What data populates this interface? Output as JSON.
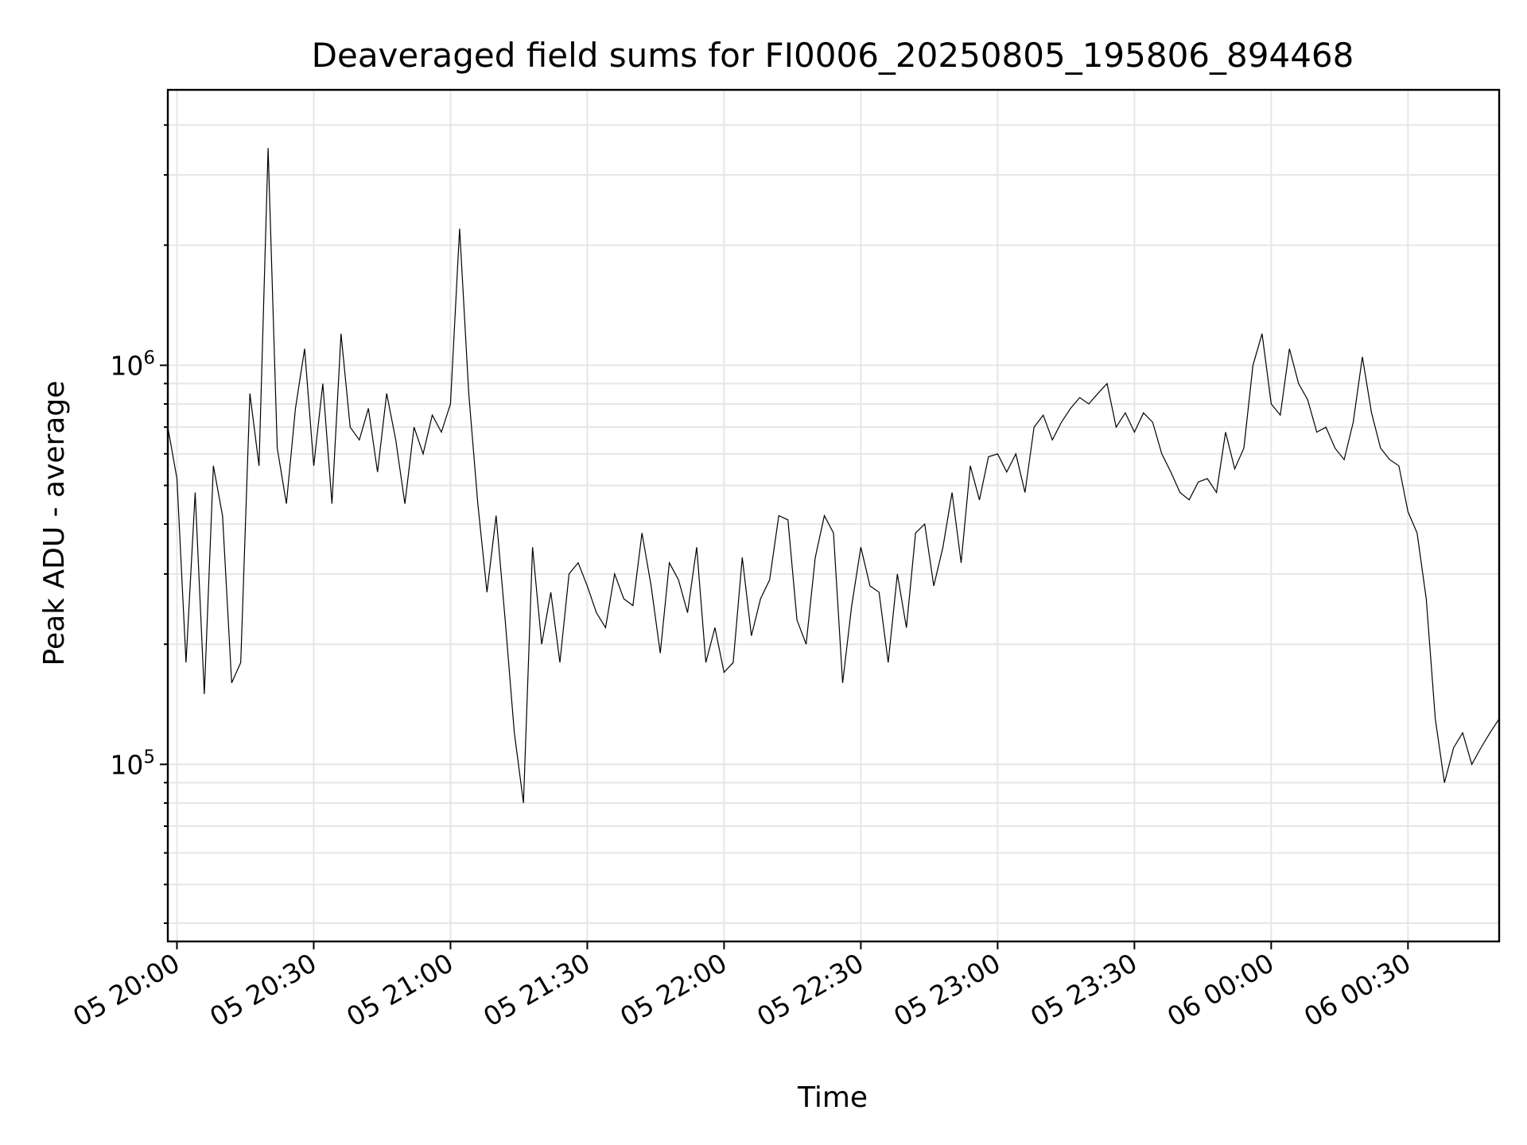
{
  "chart_data": {
    "type": "line",
    "title": "Deaveraged field sums for FI0006_20250805_195806_894468",
    "xlabel": "Time",
    "ylabel": "Peak ADU - average",
    "yscale": "log",
    "ylim": [
      36000,
      4900000
    ],
    "xlim": [
      "2025-08-05 19:58",
      "2025-08-06 00:50"
    ],
    "grid": true,
    "line_color": "#000000",
    "x_ticks": [
      {
        "t": "2025-08-05 20:00",
        "label": "05 20:00"
      },
      {
        "t": "2025-08-05 20:30",
        "label": "05 20:30"
      },
      {
        "t": "2025-08-05 21:00",
        "label": "05 21:00"
      },
      {
        "t": "2025-08-05 21:30",
        "label": "05 21:30"
      },
      {
        "t": "2025-08-05 22:00",
        "label": "05 22:00"
      },
      {
        "t": "2025-08-05 22:30",
        "label": "05 22:30"
      },
      {
        "t": "2025-08-05 23:00",
        "label": "05 23:00"
      },
      {
        "t": "2025-08-05 23:30",
        "label": "05 23:30"
      },
      {
        "t": "2025-08-06 00:00",
        "label": "06 00:00"
      },
      {
        "t": "2025-08-06 00:30",
        "label": "06 00:30"
      }
    ],
    "y_ticks": [
      {
        "value": 100000,
        "base": "10",
        "exp": "5"
      },
      {
        "value": 1000000,
        "base": "10",
        "exp": "6"
      }
    ],
    "series": [
      {
        "x": [
          "2025-08-05 19:58",
          "2025-08-05 20:00",
          "2025-08-05 20:02",
          "2025-08-05 20:04",
          "2025-08-05 20:06",
          "2025-08-05 20:08",
          "2025-08-05 20:10",
          "2025-08-05 20:12",
          "2025-08-05 20:14",
          "2025-08-05 20:16",
          "2025-08-05 20:18",
          "2025-08-05 20:20",
          "2025-08-05 20:22",
          "2025-08-05 20:24",
          "2025-08-05 20:26",
          "2025-08-05 20:28",
          "2025-08-05 20:30",
          "2025-08-05 20:32",
          "2025-08-05 20:34",
          "2025-08-05 20:36",
          "2025-08-05 20:38",
          "2025-08-05 20:40",
          "2025-08-05 20:42",
          "2025-08-05 20:44",
          "2025-08-05 20:46",
          "2025-08-05 20:48",
          "2025-08-05 20:50",
          "2025-08-05 20:52",
          "2025-08-05 20:54",
          "2025-08-05 20:56",
          "2025-08-05 20:58",
          "2025-08-05 21:00",
          "2025-08-05 21:02",
          "2025-08-05 21:04",
          "2025-08-05 21:06",
          "2025-08-05 21:08",
          "2025-08-05 21:10",
          "2025-08-05 21:12",
          "2025-08-05 21:14",
          "2025-08-05 21:16",
          "2025-08-05 21:18",
          "2025-08-05 21:20",
          "2025-08-05 21:22",
          "2025-08-05 21:24",
          "2025-08-05 21:26",
          "2025-08-05 21:28",
          "2025-08-05 21:30",
          "2025-08-05 21:32",
          "2025-08-05 21:34",
          "2025-08-05 21:36",
          "2025-08-05 21:38",
          "2025-08-05 21:40",
          "2025-08-05 21:42",
          "2025-08-05 21:44",
          "2025-08-05 21:46",
          "2025-08-05 21:48",
          "2025-08-05 21:50",
          "2025-08-05 21:52",
          "2025-08-05 21:54",
          "2025-08-05 21:56",
          "2025-08-05 21:58",
          "2025-08-05 22:00",
          "2025-08-05 22:02",
          "2025-08-05 22:04",
          "2025-08-05 22:06",
          "2025-08-05 22:08",
          "2025-08-05 22:10",
          "2025-08-05 22:12",
          "2025-08-05 22:14",
          "2025-08-05 22:16",
          "2025-08-05 22:18",
          "2025-08-05 22:20",
          "2025-08-05 22:22",
          "2025-08-05 22:24",
          "2025-08-05 22:26",
          "2025-08-05 22:28",
          "2025-08-05 22:30",
          "2025-08-05 22:32",
          "2025-08-05 22:34",
          "2025-08-05 22:36",
          "2025-08-05 22:38",
          "2025-08-05 22:40",
          "2025-08-05 22:42",
          "2025-08-05 22:44",
          "2025-08-05 22:46",
          "2025-08-05 22:48",
          "2025-08-05 22:50",
          "2025-08-05 22:52",
          "2025-08-05 22:54",
          "2025-08-05 22:56",
          "2025-08-05 22:58",
          "2025-08-05 23:00",
          "2025-08-05 23:02",
          "2025-08-05 23:04",
          "2025-08-05 23:06",
          "2025-08-05 23:08",
          "2025-08-05 23:10",
          "2025-08-05 23:12",
          "2025-08-05 23:14",
          "2025-08-05 23:16",
          "2025-08-05 23:18",
          "2025-08-05 23:20",
          "2025-08-05 23:22",
          "2025-08-05 23:24",
          "2025-08-05 23:26",
          "2025-08-05 23:28",
          "2025-08-05 23:30",
          "2025-08-05 23:32",
          "2025-08-05 23:34",
          "2025-08-05 23:36",
          "2025-08-05 23:38",
          "2025-08-05 23:40",
          "2025-08-05 23:42",
          "2025-08-05 23:44",
          "2025-08-05 23:46",
          "2025-08-05 23:48",
          "2025-08-05 23:50",
          "2025-08-05 23:52",
          "2025-08-05 23:54",
          "2025-08-05 23:56",
          "2025-08-05 23:58",
          "2025-08-06 00:00",
          "2025-08-06 00:02",
          "2025-08-06 00:04",
          "2025-08-06 00:06",
          "2025-08-06 00:08",
          "2025-08-06 00:10",
          "2025-08-06 00:12",
          "2025-08-06 00:14",
          "2025-08-06 00:16",
          "2025-08-06 00:18",
          "2025-08-06 00:20",
          "2025-08-06 00:22",
          "2025-08-06 00:24",
          "2025-08-06 00:26",
          "2025-08-06 00:28",
          "2025-08-06 00:30",
          "2025-08-06 00:32",
          "2025-08-06 00:34",
          "2025-08-06 00:36",
          "2025-08-06 00:38",
          "2025-08-06 00:40",
          "2025-08-06 00:42",
          "2025-08-06 00:44",
          "2025-08-06 00:46",
          "2025-08-06 00:48",
          "2025-08-06 00:50"
        ],
        "y": [
          700000,
          520000,
          180000,
          480000,
          150000,
          560000,
          420000,
          160000,
          180000,
          850000,
          560000,
          3500000,
          620000,
          450000,
          780000,
          1100000,
          560000,
          900000,
          450000,
          1200000,
          700000,
          650000,
          780000,
          540000,
          850000,
          650000,
          450000,
          700000,
          600000,
          750000,
          680000,
          800000,
          2200000,
          850000,
          450000,
          270000,
          420000,
          230000,
          120000,
          80000,
          350000,
          200000,
          270000,
          180000,
          300000,
          320000,
          280000,
          240000,
          220000,
          300000,
          260000,
          250000,
          380000,
          280000,
          190000,
          320000,
          290000,
          240000,
          350000,
          180000,
          220000,
          170000,
          180000,
          330000,
          210000,
          260000,
          290000,
          420000,
          410000,
          230000,
          200000,
          330000,
          420000,
          380000,
          160000,
          250000,
          350000,
          280000,
          270000,
          180000,
          300000,
          220000,
          380000,
          400000,
          280000,
          350000,
          480000,
          320000,
          560000,
          460000,
          590000,
          600000,
          540000,
          600000,
          480000,
          700000,
          750000,
          650000,
          720000,
          780000,
          830000,
          800000,
          850000,
          900000,
          700000,
          760000,
          680000,
          760000,
          720000,
          600000,
          540000,
          480000,
          460000,
          510000,
          520000,
          480000,
          680000,
          550000,
          620000,
          1000000,
          1200000,
          800000,
          750000,
          1100000,
          900000,
          820000,
          680000,
          700000,
          620000,
          580000,
          720000,
          1050000,
          760000,
          620000,
          580000,
          560000,
          430000,
          380000,
          260000,
          130000,
          90000,
          110000,
          120000,
          100000,
          110000,
          120000,
          130000
        ]
      }
    ]
  }
}
